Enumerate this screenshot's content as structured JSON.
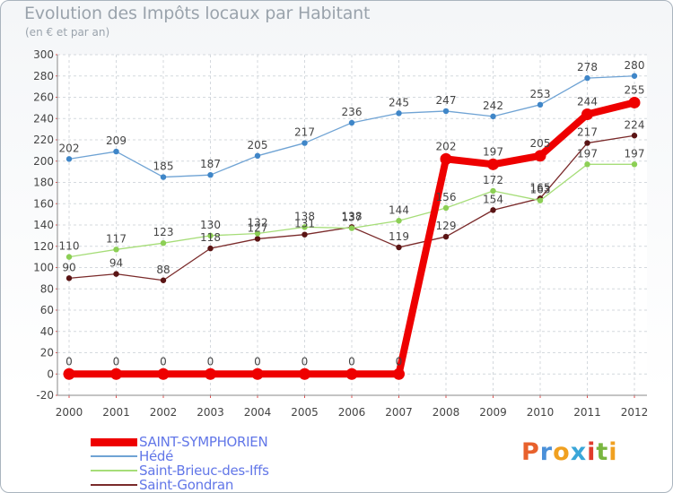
{
  "title": "Evolution des Impôts locaux par Habitant",
  "subtitle": "(en € et par an)",
  "logo": {
    "text": "Proxiti",
    "colors": [
      "#e8612c",
      "#4a90d9",
      "#f0a020",
      "#3aa6d8",
      "#e03c2c",
      "#7ab640",
      "#f0a020"
    ]
  },
  "chart_data": {
    "type": "line",
    "x": [
      "2000",
      "2001",
      "2002",
      "2003",
      "2004",
      "2005",
      "2006",
      "2007",
      "2008",
      "2009",
      "2010",
      "2011",
      "2012"
    ],
    "ylim": [
      -20,
      300
    ],
    "yticks": [
      "-20",
      "0",
      "20",
      "40",
      "60",
      "80",
      "100",
      "120",
      "140",
      "160",
      "180",
      "200",
      "220",
      "240",
      "260",
      "280",
      "300"
    ],
    "grid": true,
    "legend_position": "bottom-left",
    "series": [
      {
        "name": "SAINT-SYMPHORIEN",
        "color": "#ee0000",
        "values": [
          0,
          0,
          0,
          0,
          0,
          0,
          0,
          0,
          202,
          197,
          205,
          244,
          255
        ],
        "labels": [
          "0",
          "0",
          "0",
          "0",
          "0",
          "0",
          "0",
          "0",
          "202",
          "197",
          "205",
          "244",
          "255"
        ]
      },
      {
        "name": "Hédé",
        "color": "#6fa3d4",
        "values": [
          202,
          209,
          185,
          187,
          205,
          217,
          236,
          245,
          247,
          242,
          253,
          278,
          280
        ],
        "labels": [
          "202",
          "209",
          "185",
          "187",
          "205",
          "217",
          "236",
          "245",
          "247",
          "242",
          "253",
          "278",
          "280"
        ]
      },
      {
        "name": "Saint-Brieuc-des-Iffs",
        "color": "#a6dd78",
        "values": [
          110,
          117,
          123,
          130,
          132,
          138,
          137,
          144,
          156,
          172,
          163,
          197,
          197
        ],
        "labels": [
          "110",
          "117",
          "123",
          "130",
          "132",
          "138",
          "137",
          "144",
          "156",
          "172",
          "163",
          "197",
          "197"
        ]
      },
      {
        "name": "Saint-Gondran",
        "color": "#7a2a2a",
        "values": [
          90,
          94,
          88,
          118,
          127,
          131,
          138,
          119,
          129,
          154,
          165,
          217,
          224
        ],
        "labels": [
          "90",
          "94",
          "88",
          "118",
          "127",
          "131",
          "138",
          "119",
          "129",
          "154",
          "165",
          "217",
          "224"
        ]
      }
    ]
  }
}
